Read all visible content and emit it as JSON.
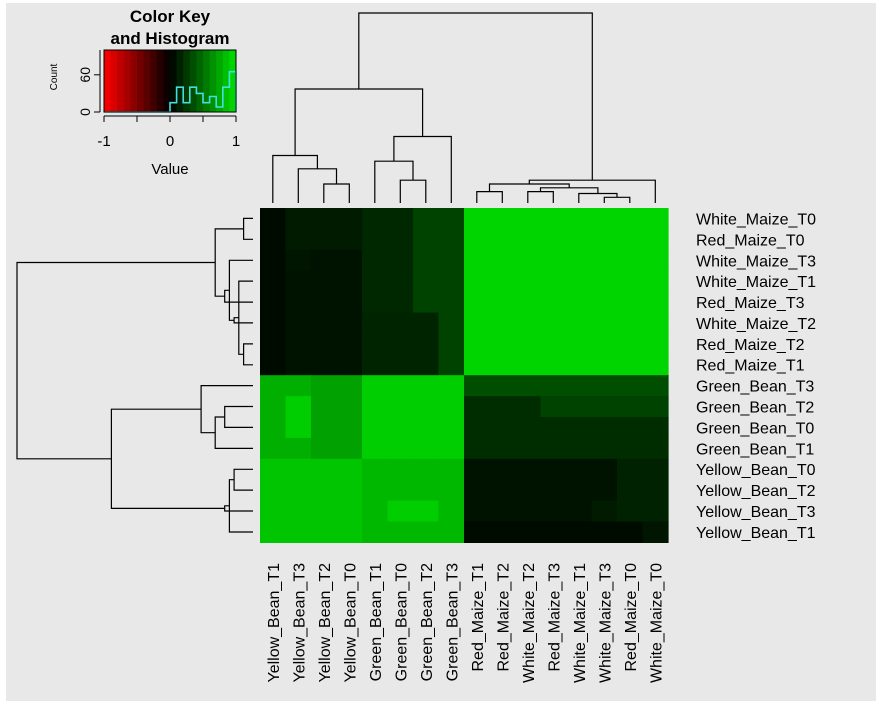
{
  "chart_data": {
    "type": "heatmap",
    "title": "",
    "xlabel": "",
    "ylabel": "",
    "value_range": [
      -1,
      1
    ],
    "color_scale": [
      "#ff0000",
      "#000000",
      "#00e000"
    ],
    "row_labels": [
      "White_Maize_T0",
      "Red_Maize_T0",
      "White_Maize_T3",
      "White_Maize_T1",
      "Red_Maize_T3",
      "White_Maize_T2",
      "Red_Maize_T2",
      "Red_Maize_T1",
      "Green_Bean_T3",
      "Green_Bean_T2",
      "Green_Bean_T0",
      "Green_Bean_T1",
      "Yellow_Bean_T0",
      "Yellow_Bean_T2",
      "Yellow_Bean_T3",
      "Yellow_Bean_T1"
    ],
    "col_labels": [
      "Yellow_Bean_T1",
      "Yellow_Bean_T3",
      "Yellow_Bean_T2",
      "Yellow_Bean_T0",
      "Green_Bean_T1",
      "Green_Bean_T0",
      "Green_Bean_T2",
      "Green_Bean_T3",
      "Red_Maize_T1",
      "Red_Maize_T2",
      "White_Maize_T2",
      "Red_Maize_T3",
      "White_Maize_T1",
      "White_Maize_T3",
      "Red_Maize_T0",
      "White_Maize_T0"
    ],
    "values": [
      [
        0.05,
        0.12,
        0.12,
        0.12,
        0.18,
        0.18,
        0.3,
        0.3,
        0.95,
        0.95,
        0.95,
        0.95,
        0.95,
        0.95,
        0.95,
        0.95
      ],
      [
        0.05,
        0.12,
        0.12,
        0.12,
        0.18,
        0.18,
        0.3,
        0.3,
        0.95,
        0.95,
        0.95,
        0.95,
        0.95,
        0.95,
        0.95,
        0.95
      ],
      [
        0.05,
        0.1,
        0.08,
        0.08,
        0.18,
        0.18,
        0.3,
        0.3,
        0.95,
        0.95,
        0.95,
        0.95,
        0.95,
        0.95,
        0.95,
        0.95
      ],
      [
        0.05,
        0.08,
        0.08,
        0.08,
        0.18,
        0.18,
        0.3,
        0.3,
        0.95,
        0.95,
        0.95,
        0.95,
        0.95,
        0.95,
        0.95,
        0.95
      ],
      [
        0.05,
        0.08,
        0.08,
        0.08,
        0.18,
        0.18,
        0.3,
        0.3,
        0.95,
        0.95,
        0.95,
        0.95,
        0.95,
        0.95,
        0.95,
        0.95
      ],
      [
        0.05,
        0.08,
        0.08,
        0.08,
        0.16,
        0.16,
        0.16,
        0.3,
        0.95,
        0.95,
        0.95,
        0.95,
        0.95,
        0.95,
        0.95,
        0.95
      ],
      [
        0.05,
        0.08,
        0.08,
        0.08,
        0.16,
        0.16,
        0.16,
        0.3,
        0.95,
        0.95,
        0.95,
        0.95,
        0.95,
        0.95,
        0.95,
        0.95
      ],
      [
        0.05,
        0.08,
        0.08,
        0.08,
        0.16,
        0.16,
        0.16,
        0.3,
        0.95,
        0.95,
        0.95,
        0.95,
        0.95,
        0.95,
        0.95,
        0.95
      ],
      [
        0.78,
        0.78,
        0.72,
        0.72,
        0.92,
        0.92,
        0.92,
        0.92,
        0.35,
        0.35,
        0.35,
        0.35,
        0.35,
        0.35,
        0.35,
        0.35
      ],
      [
        0.78,
        0.92,
        0.72,
        0.72,
        0.92,
        0.92,
        0.92,
        0.92,
        0.2,
        0.2,
        0.2,
        0.3,
        0.3,
        0.3,
        0.3,
        0.3
      ],
      [
        0.78,
        0.92,
        0.72,
        0.72,
        0.92,
        0.92,
        0.92,
        0.92,
        0.2,
        0.2,
        0.2,
        0.2,
        0.2,
        0.2,
        0.2,
        0.2
      ],
      [
        0.78,
        0.78,
        0.72,
        0.72,
        0.92,
        0.92,
        0.92,
        0.92,
        0.2,
        0.2,
        0.2,
        0.2,
        0.2,
        0.2,
        0.2,
        0.2
      ],
      [
        0.88,
        0.88,
        0.88,
        0.88,
        0.82,
        0.82,
        0.82,
        0.82,
        0.08,
        0.08,
        0.08,
        0.08,
        0.08,
        0.08,
        0.15,
        0.15
      ],
      [
        0.88,
        0.88,
        0.88,
        0.88,
        0.82,
        0.82,
        0.82,
        0.82,
        0.08,
        0.08,
        0.08,
        0.08,
        0.08,
        0.08,
        0.15,
        0.15
      ],
      [
        0.88,
        0.88,
        0.88,
        0.88,
        0.82,
        0.92,
        0.92,
        0.82,
        0.08,
        0.08,
        0.08,
        0.08,
        0.08,
        0.12,
        0.15,
        0.15
      ],
      [
        0.88,
        0.88,
        0.88,
        0.88,
        0.82,
        0.82,
        0.82,
        0.82,
        0.05,
        0.05,
        0.05,
        0.05,
        0.05,
        0.05,
        0.05,
        0.1
      ]
    ],
    "row_dendrogram_merges": [
      [
        0,
        1,
        0.04
      ],
      [
        6,
        7,
        0.04
      ],
      [
        3,
        -2,
        0.06
      ],
      [
        5,
        -3,
        0.08
      ],
      [
        2,
        -4,
        0.1
      ],
      [
        4,
        -5,
        0.12
      ],
      [
        -1,
        -6,
        0.16
      ],
      [
        9,
        10,
        0.12
      ],
      [
        11,
        -8,
        0.16
      ],
      [
        8,
        -9,
        0.22
      ],
      [
        12,
        13,
        0.08
      ],
      [
        15,
        -11,
        0.1
      ],
      [
        14,
        -12,
        0.12
      ],
      [
        -10,
        -13,
        0.6
      ],
      [
        -7,
        -14,
        1.0
      ]
    ],
    "col_dendrogram_merges": [
      [
        13,
        14,
        0.03
      ],
      [
        12,
        -1,
        0.05
      ],
      [
        8,
        9,
        0.06
      ],
      [
        10,
        11,
        0.06
      ],
      [
        -2,
        -4,
        0.08
      ],
      [
        -3,
        -5,
        0.1
      ],
      [
        15,
        -6,
        0.12
      ],
      [
        5,
        6,
        0.12
      ],
      [
        4,
        -8,
        0.22
      ],
      [
        7,
        -9,
        0.35
      ],
      [
        2,
        3,
        0.1
      ],
      [
        1,
        -11,
        0.18
      ],
      [
        0,
        -12,
        0.25
      ],
      [
        -10,
        -13,
        0.6
      ],
      [
        -7,
        -14,
        1.0
      ]
    ],
    "color_key": {
      "title_line1": "Color Key",
      "title_line2": "and Histogram",
      "xlabel": "Value",
      "ylabel": "Count",
      "x_ticks": [
        "-1",
        "0",
        "1"
      ],
      "y_ticks": [
        "0",
        "60"
      ],
      "y_max": 100,
      "histogram_bins": [
        {
          "x0": 0.0,
          "x1": 0.1,
          "count": 15
        },
        {
          "x0": 0.1,
          "x1": 0.2,
          "count": 40
        },
        {
          "x0": 0.2,
          "x1": 0.3,
          "count": 15
        },
        {
          "x0": 0.3,
          "x1": 0.4,
          "count": 40
        },
        {
          "x0": 0.4,
          "x1": 0.5,
          "count": 30
        },
        {
          "x0": 0.5,
          "x1": 0.6,
          "count": 15
        },
        {
          "x0": 0.6,
          "x1": 0.7,
          "count": 25
        },
        {
          "x0": 0.7,
          "x1": 0.8,
          "count": 8
        },
        {
          "x0": 0.8,
          "x1": 0.9,
          "count": 40
        },
        {
          "x0": 0.9,
          "x1": 1.0,
          "count": 65
        }
      ]
    }
  }
}
